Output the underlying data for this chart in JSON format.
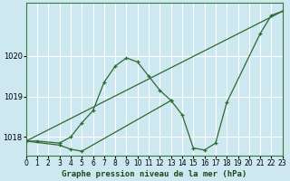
{
  "title": "Graphe pression niveau de la mer (hPa)",
  "bg_color": "#cde8f0",
  "grid_color": "#ffffff",
  "line_color": "#2d6a2d",
  "xlim": [
    0,
    23
  ],
  "ylim": [
    1017.55,
    1021.3
  ],
  "yticks": [
    1018,
    1019,
    1020
  ],
  "xticks": [
    0,
    1,
    2,
    3,
    4,
    5,
    6,
    7,
    8,
    9,
    10,
    11,
    12,
    13,
    14,
    15,
    16,
    17,
    18,
    19,
    20,
    21,
    22,
    23
  ],
  "line1_x": [
    0,
    1,
    3,
    4,
    5,
    6,
    7,
    8,
    9,
    10,
    11,
    12,
    13
  ],
  "line1_y": [
    1017.9,
    1017.9,
    1017.85,
    1018.0,
    1018.35,
    1018.65,
    1019.35,
    1019.75,
    1019.95,
    1019.85,
    1019.5,
    1019.15,
    1018.9
  ],
  "line2_x": [
    0,
    23
  ],
  "line2_y": [
    1017.9,
    1021.1
  ],
  "line3_x": [
    0,
    3,
    4,
    5,
    13,
    14,
    15,
    16,
    17,
    18,
    21,
    22,
    23
  ],
  "line3_y": [
    1017.9,
    1017.8,
    1017.7,
    1017.65,
    1018.9,
    1018.55,
    1017.73,
    1017.68,
    1017.85,
    1018.85,
    1020.55,
    1021.0,
    1021.1
  ],
  "xlabel_fontsize": 6.5,
  "tick_fontsize": 5.5
}
